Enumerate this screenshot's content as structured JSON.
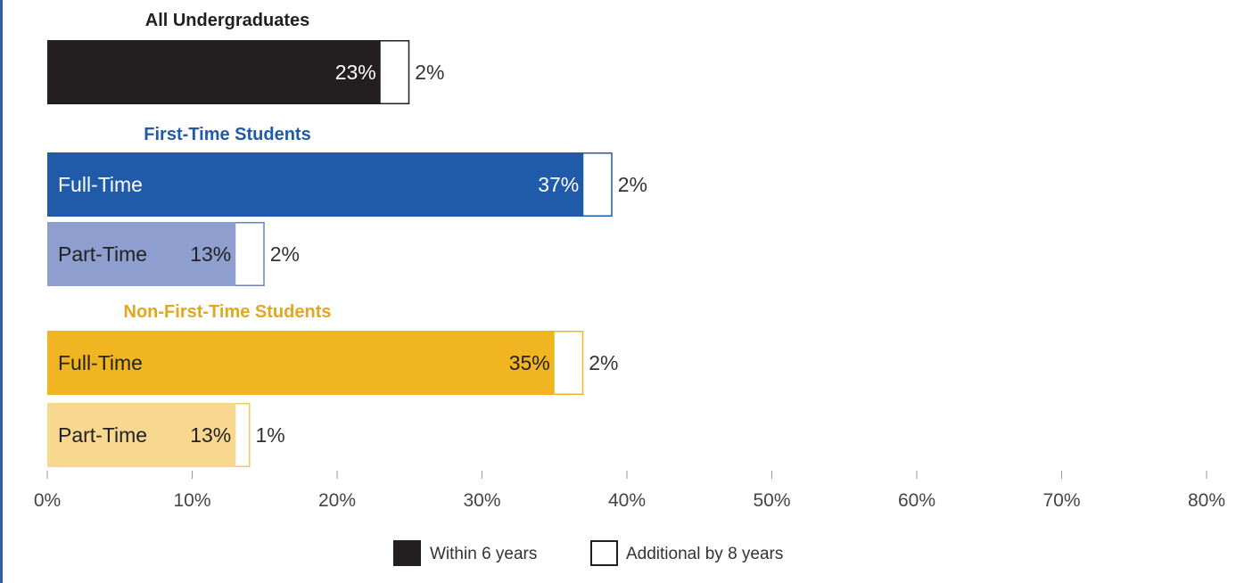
{
  "chart_data": {
    "type": "bar",
    "orientation": "horizontal",
    "stacked": true,
    "xlim": [
      0,
      80
    ],
    "x_ticks": [
      "0%",
      "10%",
      "20%",
      "30%",
      "40%",
      "50%",
      "60%",
      "70%",
      "80%"
    ],
    "legend": {
      "position": "bottom-center",
      "items": [
        {
          "label": "Within 6 years",
          "swatch": "#231f20",
          "style": "filled"
        },
        {
          "label": "Additional by 8 years",
          "swatch": "#ffffff",
          "style": "outline"
        }
      ]
    },
    "groups": [
      {
        "title": "All Undergraduates",
        "title_color": "#231f20",
        "bars": [
          {
            "label": "",
            "within_6_years": 23,
            "additional_by_8_years": 2,
            "within_label": "23%",
            "additional_label": "2%",
            "fill_color": "#231f20",
            "outline_color": "#231f20",
            "text_color": "#ffffff"
          }
        ]
      },
      {
        "title": "First-Time Students",
        "title_color": "#1f5ba8",
        "bars": [
          {
            "label": "Full-Time",
            "within_6_years": 37,
            "additional_by_8_years": 2,
            "within_label": "37%",
            "additional_label": "2%",
            "fill_color": "#1f5ba8",
            "outline_color": "#1f5ba8",
            "text_color": "#ffffff"
          },
          {
            "label": "Part-Time",
            "within_6_years": 13,
            "additional_by_8_years": 2,
            "within_label": "13%",
            "additional_label": "2%",
            "fill_color": "#8e9ecf",
            "outline_color": "#6b82c2",
            "text_color": "#222222"
          }
        ]
      },
      {
        "title": "Non-First-Time Students",
        "title_color": "#e2a71e",
        "bars": [
          {
            "label": "Full-Time",
            "within_6_years": 35,
            "additional_by_8_years": 2,
            "within_label": "35%",
            "additional_label": "2%",
            "fill_color": "#f1b521",
            "outline_color": "#f1b521",
            "text_color": "#222222"
          },
          {
            "label": "Part-Time",
            "within_6_years": 13,
            "additional_by_8_years": 1,
            "within_label": "13%",
            "additional_label": "1%",
            "fill_color": "#f8d78e",
            "outline_color": "#f1c95f",
            "text_color": "#222222"
          }
        ]
      }
    ]
  }
}
